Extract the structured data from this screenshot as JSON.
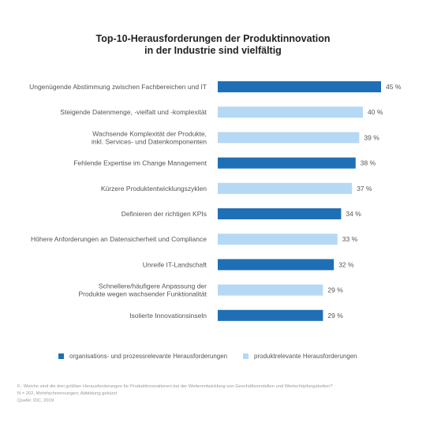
{
  "title_line1": "Top-10-Herausforderungen der Produktinnovation",
  "title_line2": "in der Industrie sind vielfältig",
  "colors": {
    "organisation": "#1f6fb7",
    "produkt": "#b5d9f5"
  },
  "chart_data": {
    "type": "bar",
    "orientation": "horizontal",
    "title": "Top-10-Herausforderungen der Produktinnovation in der Industrie sind vielfältig",
    "xlim": [
      0,
      45
    ],
    "categories": [
      [
        "Ungenügende Abstimmung zwischen Fachbereichen und IT"
      ],
      [
        "Steigende Datenmenge, -vielfalt und -komplexität"
      ],
      [
        "Wachsende Komplexität der Produkte,",
        "inkl. Services- und Datenkomponenten"
      ],
      [
        "Fehlende Expertise im Change Management"
      ],
      [
        "Kürzere Produktentwicklungszyklen"
      ],
      [
        "Definieren der richtigen KPIs"
      ],
      [
        "Höhere Anforderungen an Datensicherheit und Compliance"
      ],
      [
        "Unreife IT-Landschaft"
      ],
      [
        "Schnellere/häufigere Anpassung der",
        "Produkte wegen wachsender Funktionalität"
      ],
      [
        "Isolierte Innovationsinseln"
      ]
    ],
    "values": [
      45,
      40,
      39,
      38,
      37,
      34,
      33,
      32,
      29,
      29
    ],
    "value_labels": [
      "45 %",
      "40 %",
      "39 %",
      "38 %",
      "37 %",
      "34 %",
      "33 %",
      "32 %",
      "29 %",
      "29 %"
    ],
    "groups": [
      "organisation",
      "produkt",
      "produkt",
      "organisation",
      "produkt",
      "organisation",
      "produkt",
      "organisation",
      "produkt",
      "organisation"
    ],
    "legend": [
      {
        "key": "organisation",
        "label": "organisations- und prozessrelevante Herausforderungen"
      },
      {
        "key": "produkt",
        "label": "produktrelevante Herausforderungen"
      }
    ],
    "legend_position": "bottom"
  },
  "footnotes": [
    "F.: Welche sind die drei größten Herausforderungen für Produktinnovationen bei der Weiterentwicklung von Geschäftsmodellen und Wertschöpfungsketten?",
    "N = 202, Mehrfachnennungen; Abbildung gekürzt",
    "Quelle: IDC, 2019"
  ]
}
